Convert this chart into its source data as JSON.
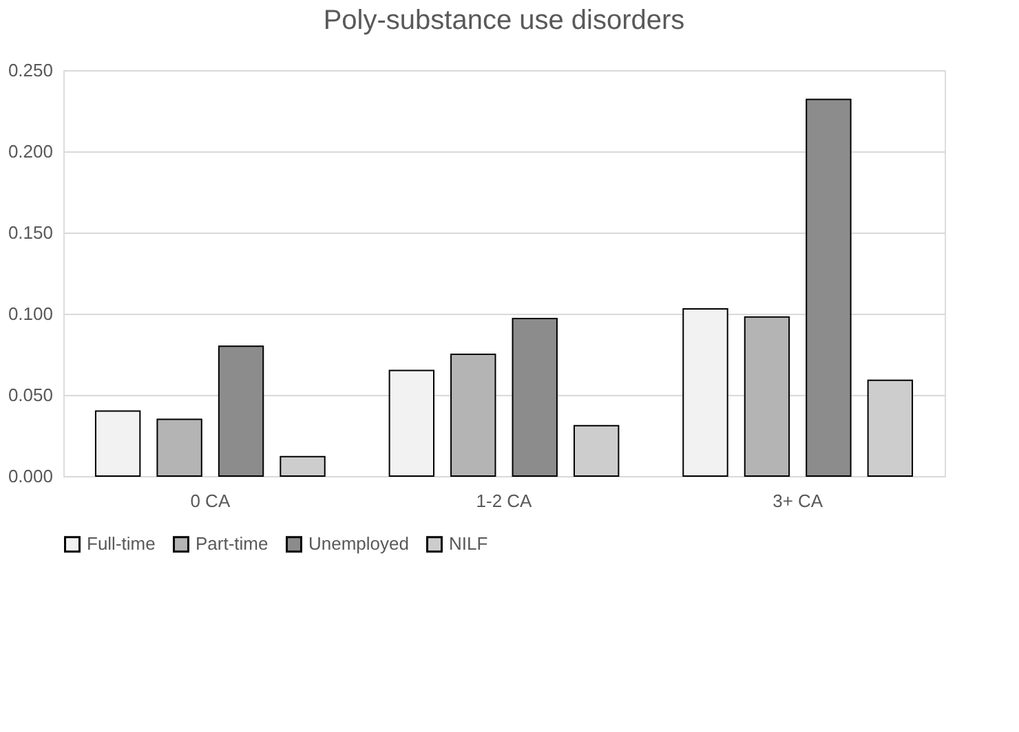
{
  "chart_data": {
    "type": "bar",
    "title": "Poly-substance use disorders",
    "categories": [
      "0 CA",
      "1-2 CA",
      "3+ CA"
    ],
    "series": [
      {
        "name": "Full-time",
        "color": "#f2f2f2",
        "values": [
          0.04,
          0.065,
          0.103
        ]
      },
      {
        "name": "Part-time",
        "color": "#b4b4b4",
        "values": [
          0.035,
          0.075,
          0.098
        ]
      },
      {
        "name": "Unemployed",
        "color": "#8c8c8c",
        "values": [
          0.08,
          0.097,
          0.232
        ]
      },
      {
        "name": "NILF",
        "color": "#cdcdcd",
        "values": [
          0.012,
          0.031,
          0.059
        ]
      }
    ],
    "ylim": [
      0,
      0.25
    ],
    "yticks": [
      {
        "value": 0,
        "label": "0.000"
      },
      {
        "value": 0.05,
        "label": "0.050"
      },
      {
        "value": 0.1,
        "label": "0.100"
      },
      {
        "value": 0.15,
        "label": "0.150"
      },
      {
        "value": 0.2,
        "label": "0.200"
      },
      {
        "value": 0.25,
        "label": "0.250"
      }
    ],
    "grid": "y",
    "legend": "bottom"
  }
}
